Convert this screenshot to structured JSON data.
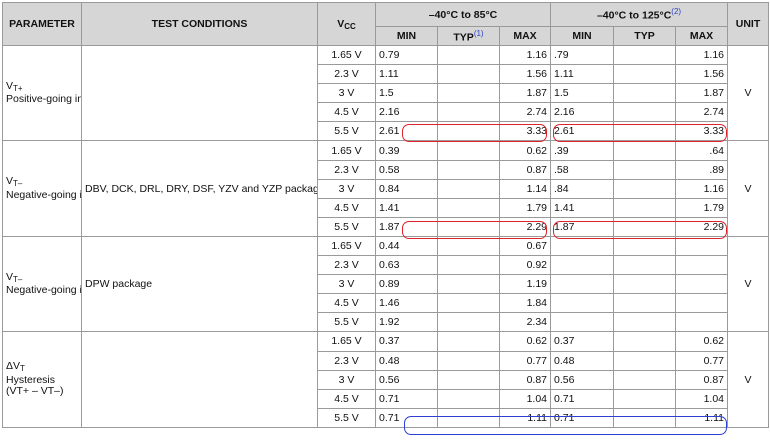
{
  "header": {
    "parameter": "PARAMETER",
    "test_conditions": "TEST CONDITIONS",
    "vcc_main": "V",
    "vcc_sub": "CC",
    "range1": "–40°C to 85°C",
    "range2": "–40°C to 125°C",
    "range2_note": "(2)",
    "unit": "UNIT",
    "min": "MIN",
    "typ": "TYP",
    "typ_note": "(1)",
    "max": "MAX"
  },
  "groups": [
    {
      "param_sym": "V",
      "param_sub": "T+",
      "param_desc": "Positive-going input threshold voltage",
      "unit": "V",
      "rows": [
        {
          "vcc": "1.65 V",
          "min1": "0.79",
          "typ1": "",
          "max1": "1.16",
          "min2": ".79",
          "typ2": "",
          "max2": "1.16"
        },
        {
          "vcc": "2.3 V",
          "min1": "1.11",
          "typ1": "",
          "max1": "1.56",
          "min2": "1.11",
          "typ2": "",
          "max2": "1.56"
        },
        {
          "vcc": "3 V",
          "min1": "1.5",
          "typ1": "",
          "max1": "1.87",
          "min2": "1.5",
          "typ2": "",
          "max2": "1.87"
        },
        {
          "vcc": "4.5 V",
          "min1": "2.16",
          "typ1": "",
          "max1": "2.74",
          "min2": "2.16",
          "typ2": "",
          "max2": "2.74"
        },
        {
          "vcc": "5.5 V",
          "min1": "2.61",
          "typ1": "",
          "max1": "3.33",
          "min2": "2.61",
          "typ2": "",
          "max2": "3.33"
        }
      ]
    },
    {
      "param_sym": "V",
      "param_sub": "T–",
      "param_desc": "Negative-going input threshold voltage",
      "condition": "DBV, DCK, DRL, DRY, DSF, YZV and YZP packages",
      "unit": "V",
      "rows": [
        {
          "vcc": "1.65 V",
          "min1": "0.39",
          "typ1": "",
          "max1": "0.62",
          "min2": ".39",
          "typ2": "",
          "max2": ".64"
        },
        {
          "vcc": "2.3 V",
          "min1": "0.58",
          "typ1": "",
          "max1": "0.87",
          "min2": ".58",
          "typ2": "",
          "max2": ".89"
        },
        {
          "vcc": "3 V",
          "min1": "0.84",
          "typ1": "",
          "max1": "1.14",
          "min2": ".84",
          "typ2": "",
          "max2": "1.16"
        },
        {
          "vcc": "4.5 V",
          "min1": "1.41",
          "typ1": "",
          "max1": "1.79",
          "min2": "1.41",
          "typ2": "",
          "max2": "1.79"
        },
        {
          "vcc": "5.5 V",
          "min1": "1.87",
          "typ1": "",
          "max1": "2.29",
          "min2": "1.87",
          "typ2": "",
          "max2": "2.29"
        }
      ]
    },
    {
      "param_sym": "V",
      "param_sub": "T–",
      "param_desc": "Negative-going input threshold voltage",
      "condition": "DPW package",
      "unit": "V",
      "rows": [
        {
          "vcc": "1.65 V",
          "min1": "0.44",
          "typ1": "",
          "max1": "0.67",
          "min2": "",
          "typ2": "",
          "max2": ""
        },
        {
          "vcc": "2.3 V",
          "min1": "0.63",
          "typ1": "",
          "max1": "0.92",
          "min2": "",
          "typ2": "",
          "max2": ""
        },
        {
          "vcc": "3 V",
          "min1": "0.89",
          "typ1": "",
          "max1": "1.19",
          "min2": "",
          "typ2": "",
          "max2": ""
        },
        {
          "vcc": "4.5 V",
          "min1": "1.46",
          "typ1": "",
          "max1": "1.84",
          "min2": "",
          "typ2": "",
          "max2": ""
        },
        {
          "vcc": "5.5 V",
          "min1": "1.92",
          "typ1": "",
          "max1": "2.34",
          "min2": "",
          "typ2": "",
          "max2": ""
        }
      ]
    },
    {
      "param_sym": "ΔV",
      "param_sub": "T",
      "param_desc": "Hysteresis",
      "param_formula": "(VT+ – VT–)",
      "unit": "V",
      "rows": [
        {
          "vcc": "1.65 V",
          "min1": "0.37",
          "typ1": "",
          "max1": "0.62",
          "min2": "0.37",
          "typ2": "",
          "max2": "0.62"
        },
        {
          "vcc": "2.3 V",
          "min1": "0.48",
          "typ1": "",
          "max1": "0.77",
          "min2": "0.48",
          "typ2": "",
          "max2": "0.77"
        },
        {
          "vcc": "3 V",
          "min1": "0.56",
          "typ1": "",
          "max1": "0.87",
          "min2": "0.56",
          "typ2": "",
          "max2": "0.87"
        },
        {
          "vcc": "4.5 V",
          "min1": "0.71",
          "typ1": "",
          "max1": "1.04",
          "min2": "0.71",
          "typ2": "",
          "max2": "1.04"
        },
        {
          "vcc": "5.5 V",
          "min1": "0.71",
          "typ1": "",
          "max1": "1.11",
          "min2": "0.71",
          "typ2": "",
          "max2": "1.11"
        }
      ]
    }
  ],
  "highlight_colors": {
    "red": "#e0222a",
    "blue": "#2f3fd6"
  }
}
